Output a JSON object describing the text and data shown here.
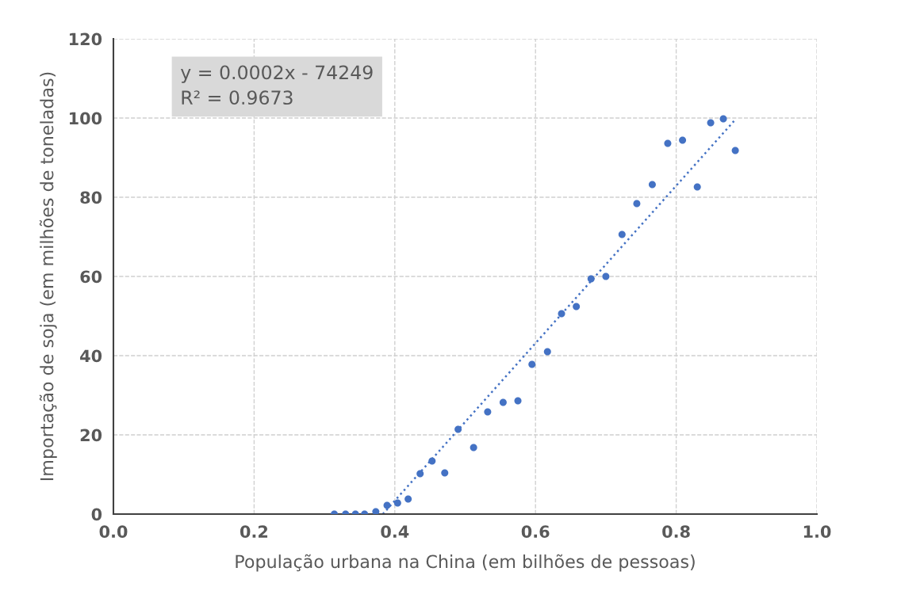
{
  "chart_data": {
    "type": "scatter",
    "xlabel": "População urbana na China (em bilhões de pessoas)",
    "ylabel": "Importação de soja (em milhões de toneladas)",
    "annotations": [
      "y = 0.0002x - 74249\nR² = 0.9673"
    ],
    "x": [
      0.314,
      0.33,
      0.344,
      0.357,
      0.373,
      0.389,
      0.404,
      0.419,
      0.436,
      0.453,
      0.471,
      0.49,
      0.512,
      0.532,
      0.554,
      0.575,
      0.595,
      0.617,
      0.637,
      0.658,
      0.679,
      0.7,
      0.723,
      0.744,
      0.766,
      0.788,
      0.809,
      0.83,
      0.849,
      0.867,
      0.884
    ],
    "series": [
      {
        "color": "#4472c4",
        "marker": "circle",
        "values": [
          0,
          0,
          0,
          0,
          0.6,
          2.2,
          2.8,
          3.8,
          10.2,
          13.4,
          10.4,
          21.4,
          16.8,
          25.8,
          28.2,
          28.6,
          37.8,
          41,
          50.6,
          52.4,
          59.4,
          60,
          70.6,
          78.4,
          83.2,
          93.6,
          94.4,
          82.6,
          98.8,
          99.8,
          91.8
        ]
      },
      {
        "type": "line",
        "color": "#4472c4",
        "line_style": "dotted",
        "x": [
          0.383,
          0.884
        ],
        "values": [
          0,
          99.6
        ]
      }
    ],
    "xlim": [
      0,
      1
    ],
    "xticks": [
      {
        "value": 0,
        "label": "0.0"
      },
      {
        "value": 0.2,
        "label": "0.2"
      },
      {
        "value": 0.4,
        "label": "0.4"
      },
      {
        "value": 0.6,
        "label": "0.6"
      },
      {
        "value": 0.8,
        "label": "0.8"
      },
      {
        "value": 1,
        "label": "1.0"
      }
    ],
    "ylim": [
      0,
      120
    ],
    "yticks": [
      0,
      20,
      40,
      60,
      80,
      100,
      120
    ],
    "grid": true
  }
}
